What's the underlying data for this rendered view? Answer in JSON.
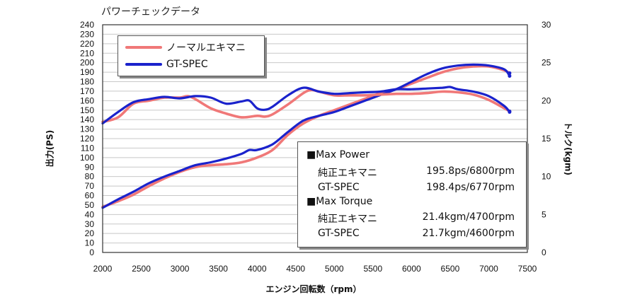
{
  "title": "パワーチェックデータ",
  "colors": {
    "normal": "#f07878",
    "gtspec": "#1a22cc"
  },
  "legend": [
    {
      "label": "ノーマルエキマニ",
      "color_key": "normal"
    },
    {
      "label": "GT-SPEC",
      "color_key": "gtspec"
    }
  ],
  "maxbox": {
    "power_heading": "■Max Power",
    "power_rows": [
      {
        "name": "純正エキマニ",
        "value": "195.8ps/6800rpm"
      },
      {
        "name": "GT-SPEC",
        "value": "198.4ps/6770rpm"
      }
    ],
    "torque_heading": "■Max Torque",
    "torque_rows": [
      {
        "name": "純正エキマニ",
        "value": "21.4kgm/4700rpm"
      },
      {
        "name": "GT-SPEC",
        "value": "21.7kgm/4600rpm"
      }
    ]
  },
  "chart_data": {
    "type": "line",
    "title": "パワーチェックデータ",
    "xlabel": "エンジン回転数（rpm）",
    "ylabel_left": "出力(PS)",
    "ylabel_right": "トルク(kgm)",
    "xlim": [
      2000,
      7500
    ],
    "ylim_left": [
      0,
      240
    ],
    "ylim_right": [
      0,
      30
    ],
    "x_ticks": [
      "2000",
      "2500",
      "3000",
      "3500",
      "4000",
      "4500",
      "5000",
      "5500",
      "6000",
      "6500",
      "7000",
      "7500"
    ],
    "y_ticks_left": [
      "0",
      "10",
      "20",
      "30",
      "40",
      "50",
      "60",
      "70",
      "80",
      "90",
      "100",
      "110",
      "120",
      "130",
      "140",
      "150",
      "160",
      "170",
      "180",
      "190",
      "200",
      "210",
      "220",
      "230",
      "240"
    ],
    "y_ticks_right": [
      "0",
      "5",
      "10",
      "15",
      "20",
      "25",
      "30"
    ],
    "grid": "horizontal",
    "legend_position": "top-left",
    "series": [
      {
        "name": "ノーマルエキマニ",
        "quantity": "power",
        "axis": "left",
        "color_key": "normal",
        "x": [
          2000,
          2200,
          2400,
          2600,
          2800,
          3000,
          3200,
          3400,
          3600,
          3800,
          4000,
          4200,
          4400,
          4600,
          4800,
          5000,
          5200,
          5400,
          5600,
          5800,
          6000,
          6200,
          6400,
          6600,
          6800,
          7000,
          7200,
          7270
        ],
        "y": [
          48,
          54,
          61,
          70,
          78,
          85,
          90,
          92,
          93,
          95,
          100,
          108,
          124,
          136,
          144,
          150,
          156,
          162,
          168,
          172,
          178,
          184,
          190,
          194,
          196,
          196,
          192,
          189
        ]
      },
      {
        "name": "GT-SPEC",
        "quantity": "power",
        "axis": "left",
        "color_key": "gtspec",
        "x": [
          2000,
          2200,
          2400,
          2600,
          2800,
          3000,
          3200,
          3400,
          3600,
          3800,
          3900,
          4000,
          4200,
          4400,
          4600,
          4800,
          5000,
          5200,
          5400,
          5600,
          5800,
          6000,
          6200,
          6400,
          6600,
          6800,
          7000,
          7200,
          7270
        ],
        "y": [
          47,
          56,
          64,
          73,
          80,
          86,
          92,
          95,
          99,
          104,
          108,
          108,
          114,
          127,
          139,
          144,
          148,
          154,
          160,
          166,
          172,
          180,
          188,
          194,
          197,
          198,
          197,
          193,
          186
        ]
      },
      {
        "name": "ノーマルエキマニ",
        "quantity": "torque",
        "axis": "right",
        "color_key": "normal",
        "x": [
          2000,
          2200,
          2400,
          2600,
          2800,
          3000,
          3100,
          3200,
          3400,
          3600,
          3800,
          4000,
          4100,
          4200,
          4400,
          4600,
          4700,
          4800,
          5000,
          5200,
          5400,
          5600,
          5800,
          6000,
          6200,
          6400,
          6600,
          6800,
          7000,
          7200,
          7270
        ],
        "y": [
          17.2,
          17.8,
          19.6,
          20.0,
          20.4,
          20.4,
          20.6,
          20.2,
          19.0,
          18.3,
          17.8,
          18.0,
          17.9,
          18.2,
          19.5,
          21.0,
          21.4,
          21.2,
          20.7,
          20.7,
          20.7,
          20.8,
          20.9,
          20.9,
          21.0,
          21.2,
          21.1,
          20.8,
          20.1,
          19.0,
          18.6
        ]
      },
      {
        "name": "GT-SPEC",
        "quantity": "torque",
        "axis": "right",
        "color_key": "gtspec",
        "x": [
          2000,
          2200,
          2400,
          2600,
          2800,
          3000,
          3200,
          3400,
          3600,
          3800,
          3900,
          4000,
          4100,
          4200,
          4400,
          4600,
          4800,
          5000,
          5200,
          5400,
          5600,
          5800,
          6000,
          6200,
          6400,
          6500,
          6600,
          6800,
          7000,
          7200,
          7270
        ],
        "y": [
          17.0,
          18.5,
          19.8,
          20.2,
          20.5,
          20.3,
          20.6,
          20.4,
          19.6,
          19.9,
          20.0,
          19.0,
          18.8,
          19.2,
          20.7,
          21.7,
          21.2,
          20.9,
          21.0,
          21.1,
          21.2,
          21.5,
          21.5,
          21.6,
          21.7,
          21.8,
          21.5,
          21.2,
          20.6,
          19.3,
          18.5
        ]
      }
    ]
  }
}
